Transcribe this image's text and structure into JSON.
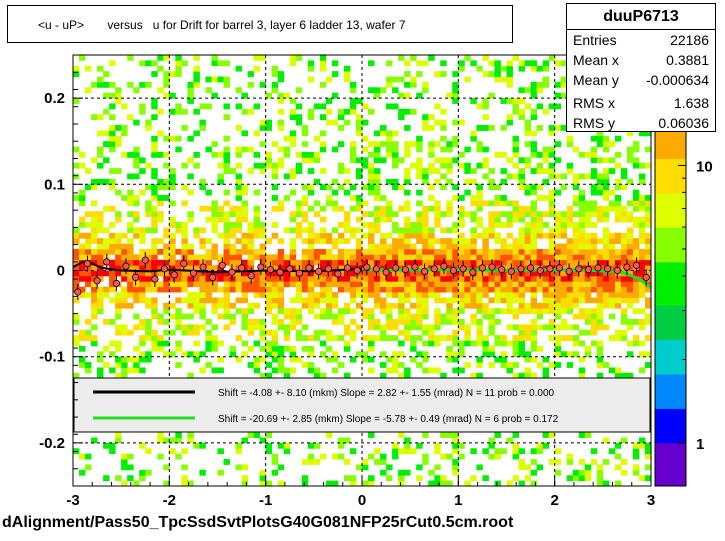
{
  "title": "<u - uP>       versus   u for Drift for barrel 3, layer 6 ladder 13, wafer 7",
  "stats": {
    "name": "duuP6713",
    "rows": [
      {
        "label": "Entries",
        "value": "22186"
      },
      {
        "label": "Mean x",
        "value": "0.3881"
      },
      {
        "label": "Mean y",
        "value": "-0.000634"
      },
      {
        "label": "RMS x",
        "value": "1.638"
      },
      {
        "label": "RMS y",
        "value": "0.06036"
      }
    ]
  },
  "legend": [
    {
      "text": "Shift =    -4.08 +- 8.10 (mkm) Slope =     2.82 +- 1.55 (mrad)  N = 11 prob = 0.000",
      "color": "#000000"
    },
    {
      "text": "Shift =   -20.69 +- 2.85 (mkm) Slope =    -5.78 +- 0.49 (mrad)  N = 6 prob = 0.172",
      "color": "#22dd22"
    }
  ],
  "footer": "dAlignment/Pass50_TpcSsdSvtPlotsG40G081NFP25rCut0.5cm.root",
  "colors": {
    "palette": [
      "#ff0000",
      "#ff5500",
      "#ffaa00",
      "#ffdd00",
      "#ddff00",
      "#88ff00",
      "#00ee00",
      "#00cc44",
      "#00cccc",
      "#0088ff",
      "#0000ff",
      "#6600cc"
    ],
    "profile_marker": "#ff5555",
    "fit_black": "#000000",
    "fit_green": "#22dd22"
  },
  "chart_data": {
    "type": "heatmap",
    "x_range": [
      -3,
      3
    ],
    "y_range": [
      -0.25,
      0.25
    ],
    "x_ticks": [
      "-3",
      "-2",
      "-1",
      "0",
      "1",
      "2",
      "3"
    ],
    "y_ticks": [
      "-0.2",
      "-0.1",
      "0",
      "0.1",
      "0.2"
    ],
    "z_scale": "log",
    "z_ticks": [
      "1",
      "10"
    ],
    "z_label_partial": "0",
    "grid": true,
    "profile": {
      "x": [
        -2.95,
        -2.85,
        -2.75,
        -2.65,
        -2.55,
        -2.45,
        -2.35,
        -2.25,
        -2.15,
        -2.05,
        -1.95,
        -1.85,
        -1.75,
        -1.65,
        -1.55,
        -1.45,
        -1.35,
        -1.25,
        -1.15,
        -1.05,
        -0.95,
        -0.85,
        -0.75,
        -0.65,
        -0.55,
        -0.45,
        -0.35,
        -0.25,
        -0.15,
        -0.05,
        0.05,
        0.15,
        0.25,
        0.35,
        0.45,
        0.55,
        0.65,
        0.75,
        0.85,
        0.95,
        1.05,
        1.15,
        1.25,
        1.35,
        1.45,
        1.55,
        1.65,
        1.75,
        1.85,
        1.95,
        2.05,
        2.15,
        2.25,
        2.35,
        2.45,
        2.55,
        2.65,
        2.75,
        2.85,
        2.95
      ],
      "y": [
        -0.025,
        0.008,
        -0.012,
        0.01,
        -0.015,
        0.005,
        -0.008,
        0.012,
        -0.01,
        0.002,
        -0.005,
        0.008,
        -0.003,
        0.004,
        -0.008,
        0.006,
        -0.002,
        0.003,
        -0.006,
        0.004,
        0.001,
        -0.002,
        0.002,
        -0.003,
        0.003,
        -0.001,
        0.002,
        -0.004,
        0.003,
        0.0,
        0.004,
        0.002,
        -0.002,
        0.003,
        0.001,
        0.004,
        -0.001,
        0.002,
        0.005,
        0.0,
        0.002,
        -0.002,
        0.003,
        0.004,
        0.001,
        -0.001,
        0.002,
        0.003,
        0.0,
        0.002,
        0.003,
        -0.001,
        0.002,
        0.001,
        0.003,
        0.002,
        0.0,
        0.004,
        0.006,
        -0.008
      ]
    },
    "fit_black": {
      "x": [
        -3.0,
        -2.9,
        -2.8,
        -2.7,
        -2.5,
        -2.2,
        -2.0,
        -1.5,
        -1.0,
        -0.5,
        0.0
      ],
      "y": [
        0.004,
        0.01,
        0.008,
        0.003,
        0.0,
        -0.001,
        0.001,
        -0.002,
        0.0,
        -0.001,
        0.002
      ]
    },
    "fit_green": {
      "x": [
        0.0,
        0.3,
        0.6,
        1.0,
        1.5,
        2.0,
        2.4,
        2.7,
        2.8,
        2.9,
        3.0
      ],
      "y": [
        0.002,
        0.0,
        0.001,
        0.001,
        0.0,
        0.001,
        0.0,
        -0.002,
        -0.006,
        -0.012,
        -0.02
      ]
    }
  }
}
